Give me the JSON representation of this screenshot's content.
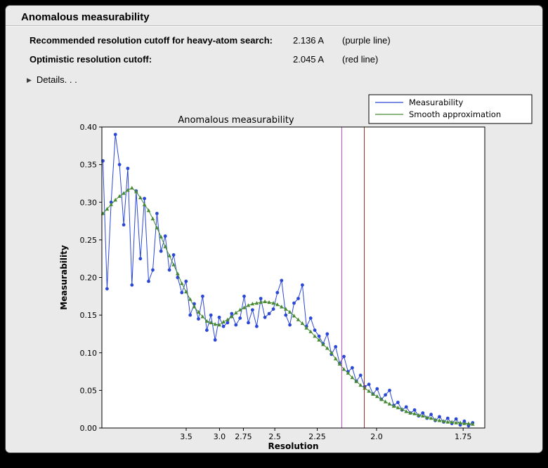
{
  "window": {
    "title": "Anomalous measurability"
  },
  "info": {
    "rows": [
      {
        "label": "Recommended resolution cutoff for heavy-atom search:",
        "value": "2.136 A",
        "note": "(purple line)"
      },
      {
        "label": "Optimistic resolution cutoff:",
        "value": "2.045 A",
        "note": "(red line)"
      }
    ],
    "details_label": "Details. . ."
  },
  "chart_data": {
    "type": "line",
    "title": "Anomalous measurability",
    "xlabel": "Resolution",
    "ylabel": "Measurability",
    "ylim": [
      0.0,
      0.4
    ],
    "y_ticks": [
      "0.00",
      "0.05",
      "0.10",
      "0.15",
      "0.20",
      "0.25",
      "0.30",
      "0.35",
      "0.40"
    ],
    "x_ticks": [
      {
        "label": "3.5",
        "d": 3.5
      },
      {
        "label": "3.0",
        "d": 3.0
      },
      {
        "label": "2.75",
        "d": 2.75
      },
      {
        "label": "2.5",
        "d": 2.5
      },
      {
        "label": "2.25",
        "d": 2.25
      },
      {
        "label": "2.0",
        "d": 2.0
      },
      {
        "label": "1.75",
        "d": 1.75
      }
    ],
    "x_axis_note": "x axis linear in 1/d^2; tick labels show resolution d in Angstrom decreasing to the right",
    "x_s_range": [
      0.00708,
      0.34567
    ],
    "grid": false,
    "legend": {
      "position": "upper right, above axes",
      "entries": [
        {
          "label": "Measurability",
          "color": "#2b47d6"
        },
        {
          "label": "Smooth approximation",
          "color": "#478a33"
        }
      ]
    },
    "vlines": [
      {
        "name": "purple line",
        "d": 2.136,
        "color": "#b44fbe"
      },
      {
        "name": "red line",
        "d": 2.045,
        "color": "#993327"
      }
    ],
    "x_1_over_d2": [
      0.008,
      0.0117,
      0.0153,
      0.019,
      0.0227,
      0.0264,
      0.03,
      0.0337,
      0.0374,
      0.0411,
      0.0447,
      0.0484,
      0.0521,
      0.0558,
      0.0594,
      0.0631,
      0.0668,
      0.0705,
      0.0741,
      0.0778,
      0.0815,
      0.0852,
      0.0888,
      0.0925,
      0.0962,
      0.0999,
      0.1035,
      0.1072,
      0.1109,
      0.1146,
      0.1182,
      0.1219,
      0.1256,
      0.1293,
      0.1329,
      0.1366,
      0.1403,
      0.144,
      0.1476,
      0.1513,
      0.155,
      0.1587,
      0.1623,
      0.166,
      0.1697,
      0.1733,
      0.177,
      0.1807,
      0.1844,
      0.188,
      0.1917,
      0.1954,
      0.1991,
      0.2027,
      0.2064,
      0.2101,
      0.2138,
      0.2174,
      0.2211,
      0.2248,
      0.2285,
      0.2321,
      0.2358,
      0.2395,
      0.2432,
      0.2468,
      0.2505,
      0.2542,
      0.2578,
      0.2615,
      0.2652,
      0.2689,
      0.2725,
      0.2762,
      0.2799,
      0.2836,
      0.2872,
      0.2909,
      0.2946,
      0.2982,
      0.3019,
      0.3056,
      0.3093,
      0.3129,
      0.3166,
      0.3203,
      0.324,
      0.3276,
      0.3313,
      0.335
    ],
    "series": [
      {
        "name": "Measurability",
        "color": "#2b47d6",
        "marker": "circle",
        "values": [
          0.355,
          0.185,
          0.3,
          0.39,
          0.35,
          0.27,
          0.345,
          0.19,
          0.315,
          0.225,
          0.305,
          0.195,
          0.21,
          0.285,
          0.235,
          0.255,
          0.21,
          0.23,
          0.2,
          0.18,
          0.195,
          0.15,
          0.165,
          0.145,
          0.175,
          0.13,
          0.15,
          0.117,
          0.147,
          0.135,
          0.14,
          0.152,
          0.137,
          0.146,
          0.175,
          0.14,
          0.157,
          0.135,
          0.172,
          0.147,
          0.152,
          0.158,
          0.18,
          0.196,
          0.15,
          0.137,
          0.166,
          0.172,
          0.19,
          0.135,
          0.146,
          0.13,
          0.122,
          0.112,
          0.125,
          0.098,
          0.108,
          0.086,
          0.095,
          0.075,
          0.08,
          0.062,
          0.07,
          0.055,
          0.058,
          0.045,
          0.052,
          0.038,
          0.044,
          0.05,
          0.03,
          0.034,
          0.024,
          0.028,
          0.02,
          0.024,
          0.016,
          0.02,
          0.013,
          0.018,
          0.01,
          0.015,
          0.008,
          0.013,
          0.006,
          0.012,
          0.004,
          0.009,
          0.003,
          0.007
        ]
      },
      {
        "name": "Smooth approximation",
        "color": "#478a33",
        "marker": "triangle",
        "values": [
          0.285,
          0.291,
          0.297,
          0.303,
          0.308,
          0.312,
          0.316,
          0.319,
          0.314,
          0.306,
          0.297,
          0.289,
          0.278,
          0.266,
          0.254,
          0.241,
          0.229,
          0.217,
          0.205,
          0.192,
          0.181,
          0.171,
          0.161,
          0.154,
          0.148,
          0.142,
          0.14,
          0.138,
          0.137,
          0.141,
          0.144,
          0.148,
          0.153,
          0.157,
          0.16,
          0.163,
          0.165,
          0.166,
          0.167,
          0.168,
          0.167,
          0.166,
          0.164,
          0.161,
          0.158,
          0.154,
          0.149,
          0.144,
          0.139,
          0.133,
          0.128,
          0.122,
          0.117,
          0.111,
          0.106,
          0.1,
          0.092,
          0.085,
          0.078,
          0.073,
          0.067,
          0.062,
          0.057,
          0.053,
          0.049,
          0.045,
          0.042,
          0.038,
          0.035,
          0.032,
          0.029,
          0.027,
          0.025,
          0.022,
          0.02,
          0.019,
          0.017,
          0.016,
          0.014,
          0.013,
          0.011,
          0.01,
          0.009,
          0.008,
          0.008,
          0.007,
          0.007,
          0.006,
          0.006,
          0.005
        ]
      }
    ]
  }
}
